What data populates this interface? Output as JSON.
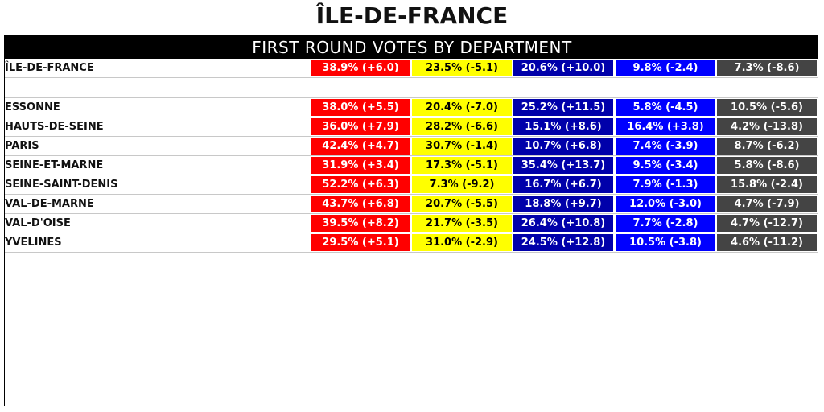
{
  "title": "ÎLE-DE-FRANCE",
  "colors": {
    "red": "#ff0000",
    "yellow": "#ffff00",
    "dark_blue": "#0000aa",
    "blue": "#0000ff",
    "grey": "#444444"
  },
  "chart_data": {
    "type": "table",
    "title": "FIRST ROUND VOTES BY DEPARTMENT",
    "column_colors": [
      "#ff0000",
      "#ffff00",
      "#0000aa",
      "#0000ff",
      "#444444"
    ],
    "column_text_colors": [
      "#ffffff",
      "#000000",
      "#ffffff",
      "#ffffff",
      "#ffffff"
    ],
    "summary": {
      "label": "ÎLE-DE-FRANCE",
      "cells": [
        "38.9% (+6.0)",
        "23.5% (-5.1)",
        "20.6% (+10.0)",
        "9.8% (-2.4)",
        "7.3% (-8.6)"
      ]
    },
    "rows": [
      {
        "label": "ESSONNE",
        "cells": [
          "38.0% (+5.5)",
          "20.4% (-7.0)",
          "25.2% (+11.5)",
          "5.8% (-4.5)",
          "10.5% (-5.6)"
        ]
      },
      {
        "label": "HAUTS-DE-SEINE",
        "cells": [
          "36.0% (+7.9)",
          "28.2% (-6.6)",
          "15.1% (+8.6)",
          "16.4% (+3.8)",
          "4.2% (-13.8)"
        ]
      },
      {
        "label": "PARIS",
        "cells": [
          "42.4% (+4.7)",
          "30.7% (-1.4)",
          "10.7% (+6.8)",
          "7.4% (-3.9)",
          "8.7% (-6.2)"
        ]
      },
      {
        "label": "SEINE-ET-MARNE",
        "cells": [
          "31.9% (+3.4)",
          "17.3% (-5.1)",
          "35.4% (+13.7)",
          "9.5% (-3.4)",
          "5.8% (-8.6)"
        ]
      },
      {
        "label": "SEINE-SAINT-DENIS",
        "cells": [
          "52.2% (+6.3)",
          "7.3% (-9.2)",
          "16.7% (+6.7)",
          "7.9% (-1.3)",
          "15.8% (-2.4)"
        ]
      },
      {
        "label": "VAL-DE-MARNE",
        "cells": [
          "43.7% (+6.8)",
          "20.7% (-5.5)",
          "18.8% (+9.7)",
          "12.0% (-3.0)",
          "4.7% (-7.9)"
        ]
      },
      {
        "label": "VAL-D'OISE",
        "cells": [
          "39.5% (+8.2)",
          "21.7% (-3.5)",
          "26.4% (+10.8)",
          "7.7% (-2.8)",
          "4.7% (-12.7)"
        ]
      },
      {
        "label": "YVELINES",
        "cells": [
          "29.5% (+5.1)",
          "31.0% (-2.9)",
          "24.5% (+12.8)",
          "10.5% (-3.8)",
          "4.6% (-11.2)"
        ]
      }
    ]
  }
}
